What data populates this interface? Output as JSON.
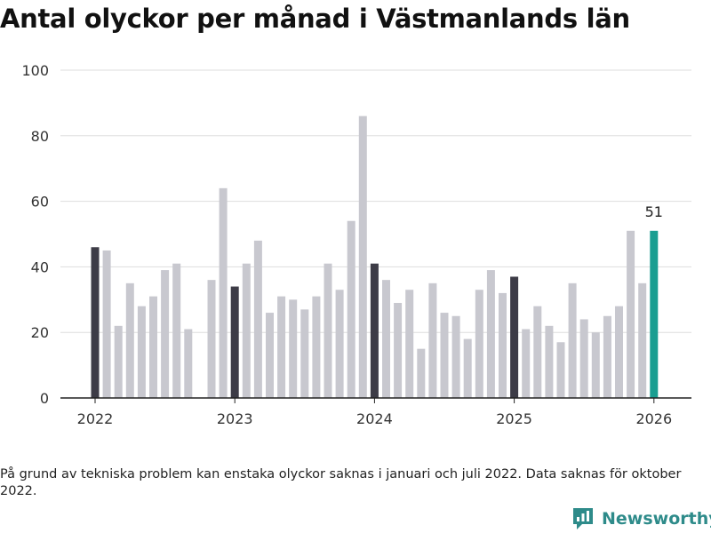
{
  "title": "Antal olyckor per månad i Västmanlands län",
  "footnote": "På grund av tekniska problem kan enstaka olyckor saknas i januari och juli 2022. Data saknas för oktober 2022.",
  "brand": {
    "name": "Newsworthy",
    "icon": "newsworthy-logo-icon"
  },
  "colors": {
    "january": "#3d3c47",
    "regular": "#c8c8cf",
    "latest": "#1a9e91",
    "grid": "#dddddd",
    "axis": "#222222"
  },
  "chart_data": {
    "type": "bar",
    "title": "Antal olyckor per månad i Västmanlands län",
    "xlabel": "",
    "ylabel": "",
    "ylim": [
      0,
      100
    ],
    "yticks": [
      0,
      20,
      40,
      60,
      80,
      100
    ],
    "xticks": [
      "2022",
      "2023",
      "2024",
      "2025",
      "2026"
    ],
    "grid": true,
    "categories": [
      "2022-01",
      "2022-02",
      "2022-03",
      "2022-04",
      "2022-05",
      "2022-06",
      "2022-07",
      "2022-08",
      "2022-09",
      "2022-10",
      "2022-11",
      "2022-12",
      "2023-01",
      "2023-02",
      "2023-03",
      "2023-04",
      "2023-05",
      "2023-06",
      "2023-07",
      "2023-08",
      "2023-09",
      "2023-10",
      "2023-11",
      "2023-12",
      "2024-01",
      "2024-02",
      "2024-03",
      "2024-04",
      "2024-05",
      "2024-06",
      "2024-07",
      "2024-08",
      "2024-09",
      "2024-10",
      "2024-11",
      "2024-12",
      "2025-01",
      "2025-02",
      "2025-03",
      "2025-04",
      "2025-05",
      "2025-06",
      "2025-07",
      "2025-08",
      "2025-09",
      "2025-10",
      "2025-11",
      "2025-12",
      "2026-01"
    ],
    "values": [
      46,
      45,
      22,
      35,
      28,
      31,
      39,
      41,
      21,
      null,
      36,
      64,
      34,
      41,
      48,
      26,
      31,
      30,
      27,
      31,
      41,
      33,
      54,
      86,
      41,
      36,
      29,
      33,
      15,
      35,
      26,
      25,
      18,
      33,
      39,
      32,
      37,
      21,
      28,
      22,
      17,
      35,
      24,
      20,
      25,
      28,
      51,
      35,
      51
    ],
    "highlight_label": "51"
  }
}
